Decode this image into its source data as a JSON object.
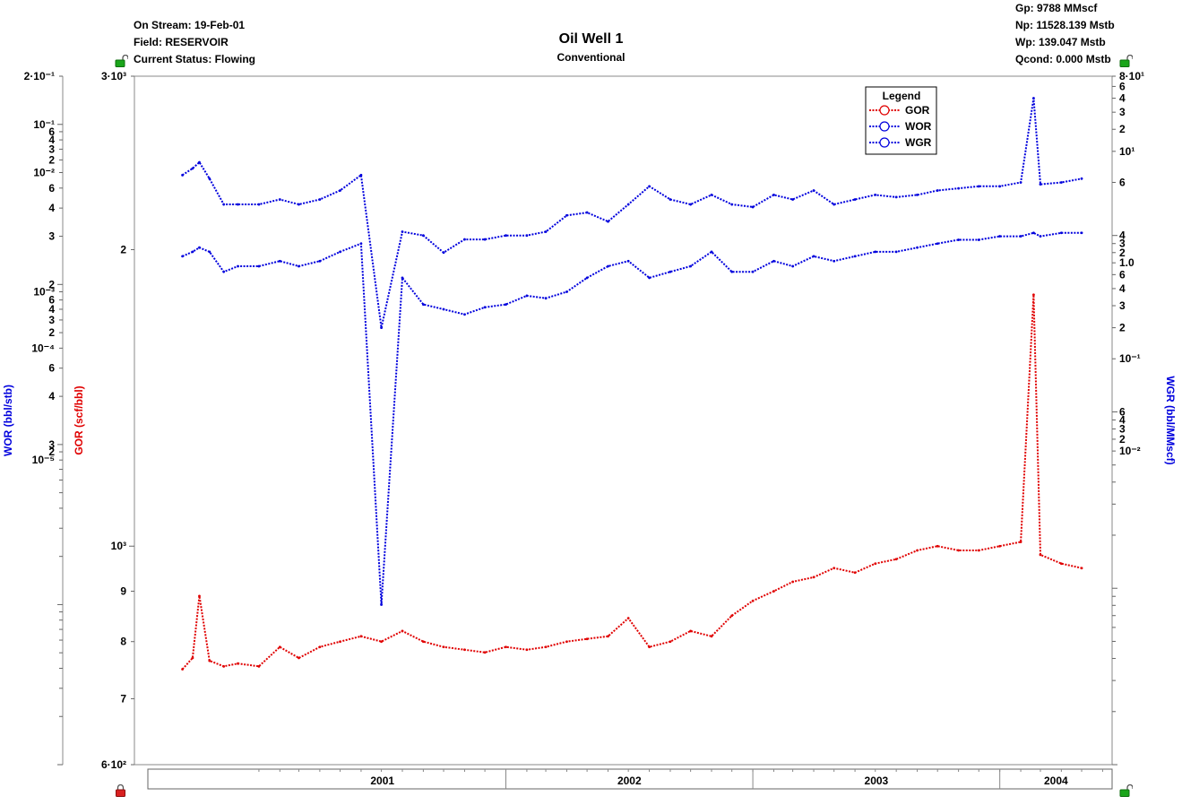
{
  "header": {
    "left": [
      "On Stream: 19-Feb-01",
      "Field: RESERVOIR",
      "Current Status: Flowing"
    ],
    "right": [
      "Gp: 9788 MMscf",
      "Np: 11528.139 Mstb",
      "Wp: 139.047 Mstb",
      "Qcond: 0.000 Mstb"
    ]
  },
  "lock_icons": {
    "top_left": "unlocked-lock-icon",
    "top_right": "unlocked-lock-icon",
    "bottom_left": "locked-lock-icon",
    "bottom_right": "unlocked-lock-icon"
  },
  "colors": {
    "gor": "#e00000",
    "wor": "#0000dd",
    "wgr": "#0000dd",
    "lock_green": "#1aa51a",
    "lock_red": "#d92020"
  },
  "chart_data": {
    "type": "line",
    "title": "Oil Well 1",
    "subtitle": "Conventional",
    "legend": {
      "title": "Legend",
      "position": "top-right",
      "entries": [
        "GOR",
        "WOR",
        "WGR"
      ]
    },
    "x_axis": {
      "type": "date",
      "range": [
        "2000-07-01",
        "2004-06-15"
      ],
      "year_labels": [
        "2001",
        "2002",
        "2003",
        "2004"
      ]
    },
    "axes": {
      "wor": {
        "label": "WOR (bbl/stb)",
        "scale": "log",
        "range": [
          1e-05,
          0.2
        ],
        "tick_labels": [
          "2·10⁻¹",
          "10⁻¹",
          "6",
          "4",
          "3",
          "2",
          "10⁻²",
          "6",
          "4",
          "3",
          "2",
          "10⁻³",
          "6",
          "4",
          "3",
          "2",
          "10⁻⁴",
          "6",
          "4",
          "3",
          "2",
          "10⁻⁵"
        ]
      },
      "gor": {
        "label": "GOR (scf/bbl)",
        "scale": "log",
        "range": [
          600,
          3000
        ],
        "tick_labels": [
          "3·10³",
          "2",
          "10³",
          "9",
          "8",
          "7",
          "6·10²"
        ]
      },
      "wgr": {
        "label": "WGR (bbl/MMscf)",
        "scale": "log",
        "range": [
          0.01,
          80
        ],
        "tick_labels": [
          "8·10¹",
          "6",
          "4",
          "3",
          "2",
          "10¹",
          "6",
          "4",
          "3",
          "2",
          "1.0",
          "6",
          "4",
          "3",
          "2",
          "10⁻¹",
          "6",
          "4",
          "3",
          "2",
          "10⁻²"
        ]
      }
    },
    "series": [
      {
        "name": "GOR",
        "axis": "gor",
        "x": [
          "2000-09-10",
          "2000-09-25",
          "2000-10-05",
          "2000-10-20",
          "2000-11-10",
          "2000-12-01",
          "2001-01-01",
          "2001-02-01",
          "2001-03-01",
          "2001-04-01",
          "2001-05-01",
          "2001-06-01",
          "2001-07-01",
          "2001-08-01",
          "2001-09-01",
          "2001-10-01",
          "2001-11-01",
          "2001-12-01",
          "2002-01-01",
          "2002-02-01",
          "2002-03-01",
          "2002-04-01",
          "2002-05-01",
          "2002-06-01",
          "2002-07-01",
          "2002-08-01",
          "2002-09-01",
          "2002-10-01",
          "2002-11-01",
          "2002-12-01",
          "2003-01-01",
          "2003-02-01",
          "2003-03-01",
          "2003-04-01",
          "2003-05-01",
          "2003-06-01",
          "2003-07-01",
          "2003-08-01",
          "2003-09-01",
          "2003-10-01",
          "2003-11-01",
          "2003-12-01",
          "2004-01-01",
          "2004-02-01",
          "2004-02-20",
          "2004-03-01",
          "2004-04-01",
          "2004-05-01"
        ],
        "y": [
          750,
          770,
          890,
          765,
          755,
          760,
          755,
          790,
          770,
          790,
          800,
          810,
          800,
          820,
          800,
          790,
          785,
          780,
          790,
          785,
          790,
          800,
          805,
          810,
          845,
          790,
          800,
          820,
          810,
          850,
          880,
          900,
          920,
          930,
          950,
          940,
          960,
          970,
          990,
          1000,
          990,
          990,
          1000,
          1010,
          1800,
          980,
          960,
          950
        ]
      },
      {
        "name": "WOR",
        "axis": "wor",
        "x": [
          "2000-09-10",
          "2000-09-25",
          "2000-10-05",
          "2000-10-20",
          "2000-11-10",
          "2000-12-01",
          "2001-01-01",
          "2001-02-01",
          "2001-03-01",
          "2001-04-01",
          "2001-05-01",
          "2001-06-01",
          "2001-07-01",
          "2001-08-01",
          "2001-09-01",
          "2001-10-01",
          "2001-11-01",
          "2001-12-01",
          "2002-01-01",
          "2002-02-01",
          "2002-03-01",
          "2002-04-01",
          "2002-05-01",
          "2002-06-01",
          "2002-07-01",
          "2002-08-01",
          "2002-09-01",
          "2002-10-01",
          "2002-11-01",
          "2002-12-01",
          "2003-01-01",
          "2003-02-01",
          "2003-03-01",
          "2003-04-01",
          "2003-05-01",
          "2003-06-01",
          "2003-07-01",
          "2003-08-01",
          "2003-09-01",
          "2003-10-01",
          "2003-11-01",
          "2003-12-01",
          "2004-01-01",
          "2004-02-01",
          "2004-02-20",
          "2004-03-01",
          "2004-04-01",
          "2004-05-01"
        ],
        "y": [
          0.015,
          0.016,
          0.017,
          0.016,
          0.012,
          0.013,
          0.013,
          0.014,
          0.013,
          0.014,
          0.016,
          0.018,
          0.0001,
          0.011,
          0.0075,
          0.007,
          0.0065,
          0.0072,
          0.0075,
          0.0085,
          0.0082,
          0.009,
          0.011,
          0.013,
          0.014,
          0.011,
          0.012,
          0.013,
          0.016,
          0.012,
          0.012,
          0.014,
          0.013,
          0.015,
          0.014,
          0.015,
          0.016,
          0.016,
          0.017,
          0.018,
          0.019,
          0.019,
          0.02,
          0.02,
          0.021,
          0.02,
          0.021,
          0.021
        ]
      },
      {
        "name": "WGR",
        "axis": "wgr",
        "x": [
          "2000-09-10",
          "2000-09-25",
          "2000-10-05",
          "2000-10-20",
          "2000-11-10",
          "2000-12-01",
          "2001-01-01",
          "2001-02-01",
          "2001-03-01",
          "2001-04-01",
          "2001-05-01",
          "2001-06-01",
          "2001-07-01",
          "2001-08-01",
          "2001-09-01",
          "2001-10-01",
          "2001-11-01",
          "2001-12-01",
          "2002-01-01",
          "2002-02-01",
          "2002-03-01",
          "2002-04-01",
          "2002-05-01",
          "2002-06-01",
          "2002-07-01",
          "2002-08-01",
          "2002-09-01",
          "2002-10-01",
          "2002-11-01",
          "2002-12-01",
          "2003-01-01",
          "2003-02-01",
          "2003-03-01",
          "2003-04-01",
          "2003-05-01",
          "2003-06-01",
          "2003-07-01",
          "2003-08-01",
          "2003-09-01",
          "2003-10-01",
          "2003-11-01",
          "2003-12-01",
          "2004-01-01",
          "2004-02-01",
          "2004-02-20",
          "2004-03-01",
          "2004-04-01",
          "2004-05-01"
        ],
        "y": [
          22,
          24,
          26,
          21,
          15,
          15,
          15,
          16,
          15,
          16,
          18,
          22,
          3.0,
          10.5,
          10.0,
          8.0,
          9.5,
          9.5,
          10.0,
          10.0,
          10.5,
          13.0,
          13.5,
          12.0,
          15.0,
          19.0,
          16.0,
          15.0,
          17.0,
          15.0,
          14.5,
          17.0,
          16.0,
          18.0,
          15.0,
          16.0,
          17.0,
          16.5,
          17.0,
          18.0,
          18.5,
          19.0,
          19.0,
          20.0,
          60.0,
          19.5,
          20.0,
          21.0
        ]
      }
    ]
  }
}
